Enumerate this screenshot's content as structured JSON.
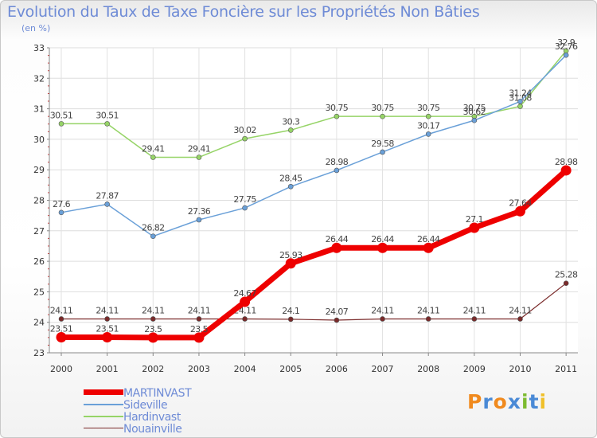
{
  "title": "Evolution du Taux de Taxe Foncière sur les Propriétés Non Bâties",
  "subtitle": "(en %)",
  "logo": {
    "text": "Proxiti",
    "colors": [
      "#f08a1e",
      "#4a8ad6",
      "#f08a1e",
      "#4a8ad6",
      "#7dbb30",
      "#4a8ad6",
      "#f0c02a"
    ]
  },
  "chart_data": {
    "type": "line",
    "title": "Evolution du Taux de Taxe Foncière sur les Propriétés Non Bâties",
    "ylabel": "(en %)",
    "xlabel": "",
    "categories": [
      "2000",
      "2001",
      "2002",
      "2003",
      "2004",
      "2005",
      "2006",
      "2007",
      "2008",
      "2009",
      "2010",
      "2011"
    ],
    "ylim": [
      23,
      33
    ],
    "yticks": [
      "23",
      "24",
      "25",
      "26",
      "27",
      "28",
      "29",
      "30",
      "31",
      "32",
      "33"
    ],
    "grid": true,
    "legend_position": "bottom-left",
    "series": [
      {
        "name": "Nouainville",
        "color": "#7a2a2a",
        "width": 1.2,
        "values": [
          24.11,
          24.11,
          24.11,
          24.11,
          24.11,
          24.1,
          24.07,
          24.11,
          24.11,
          24.11,
          24.11,
          25.28
        ],
        "labels": [
          "24.11",
          "24.11",
          "24.11",
          "24.11",
          "24.11",
          "24.1",
          "24.07",
          "24.11",
          "24.11",
          "24.11",
          "24.11",
          "25.28"
        ]
      },
      {
        "name": "Hardinvast",
        "color": "#96d467",
        "width": 1.5,
        "values": [
          30.51,
          30.51,
          29.41,
          29.41,
          30.02,
          30.3,
          30.75,
          30.75,
          30.75,
          30.75,
          31.08,
          32.9
        ],
        "labels": [
          "30.51",
          "30.51",
          "29.41",
          "29.41",
          "30.02",
          "30.3",
          "30.75",
          "30.75",
          "30.75",
          "30.75",
          "31.08",
          "32.9"
        ]
      },
      {
        "name": "Sideville",
        "color": "#6aa0d8",
        "width": 1.5,
        "values": [
          27.6,
          27.87,
          26.82,
          27.36,
          27.75,
          28.45,
          28.98,
          29.58,
          30.17,
          30.62,
          31.24,
          32.76
        ],
        "labels": [
          "27.6",
          "27.87",
          "26.82",
          "27.36",
          "27.75",
          "28.45",
          "28.98",
          "29.58",
          "30.17",
          "30.62",
          "31.24",
          "32.76"
        ]
      },
      {
        "name": "MARTINVAST",
        "color": "#ee0000",
        "width": 7,
        "values": [
          23.51,
          23.51,
          23.5,
          23.5,
          24.67,
          25.93,
          26.44,
          26.44,
          26.44,
          27.1,
          27.64,
          28.98
        ],
        "labels": [
          "23.51",
          "23.51",
          "23.5",
          "23.5",
          "24.67",
          "25.93",
          "26.44",
          "26.44",
          "26.44",
          "27.1",
          "27.64",
          "28.98"
        ]
      }
    ],
    "legend": [
      {
        "name": "MARTINVAST",
        "color": "#ee0000",
        "width": 7
      },
      {
        "name": "Sideville",
        "color": "#6aa0d8",
        "width": 1.5
      },
      {
        "name": "Hardinvast",
        "color": "#96d467",
        "width": 1.5
      },
      {
        "name": "Nouainville",
        "color": "#7a2a2a",
        "width": 1.2
      }
    ]
  }
}
